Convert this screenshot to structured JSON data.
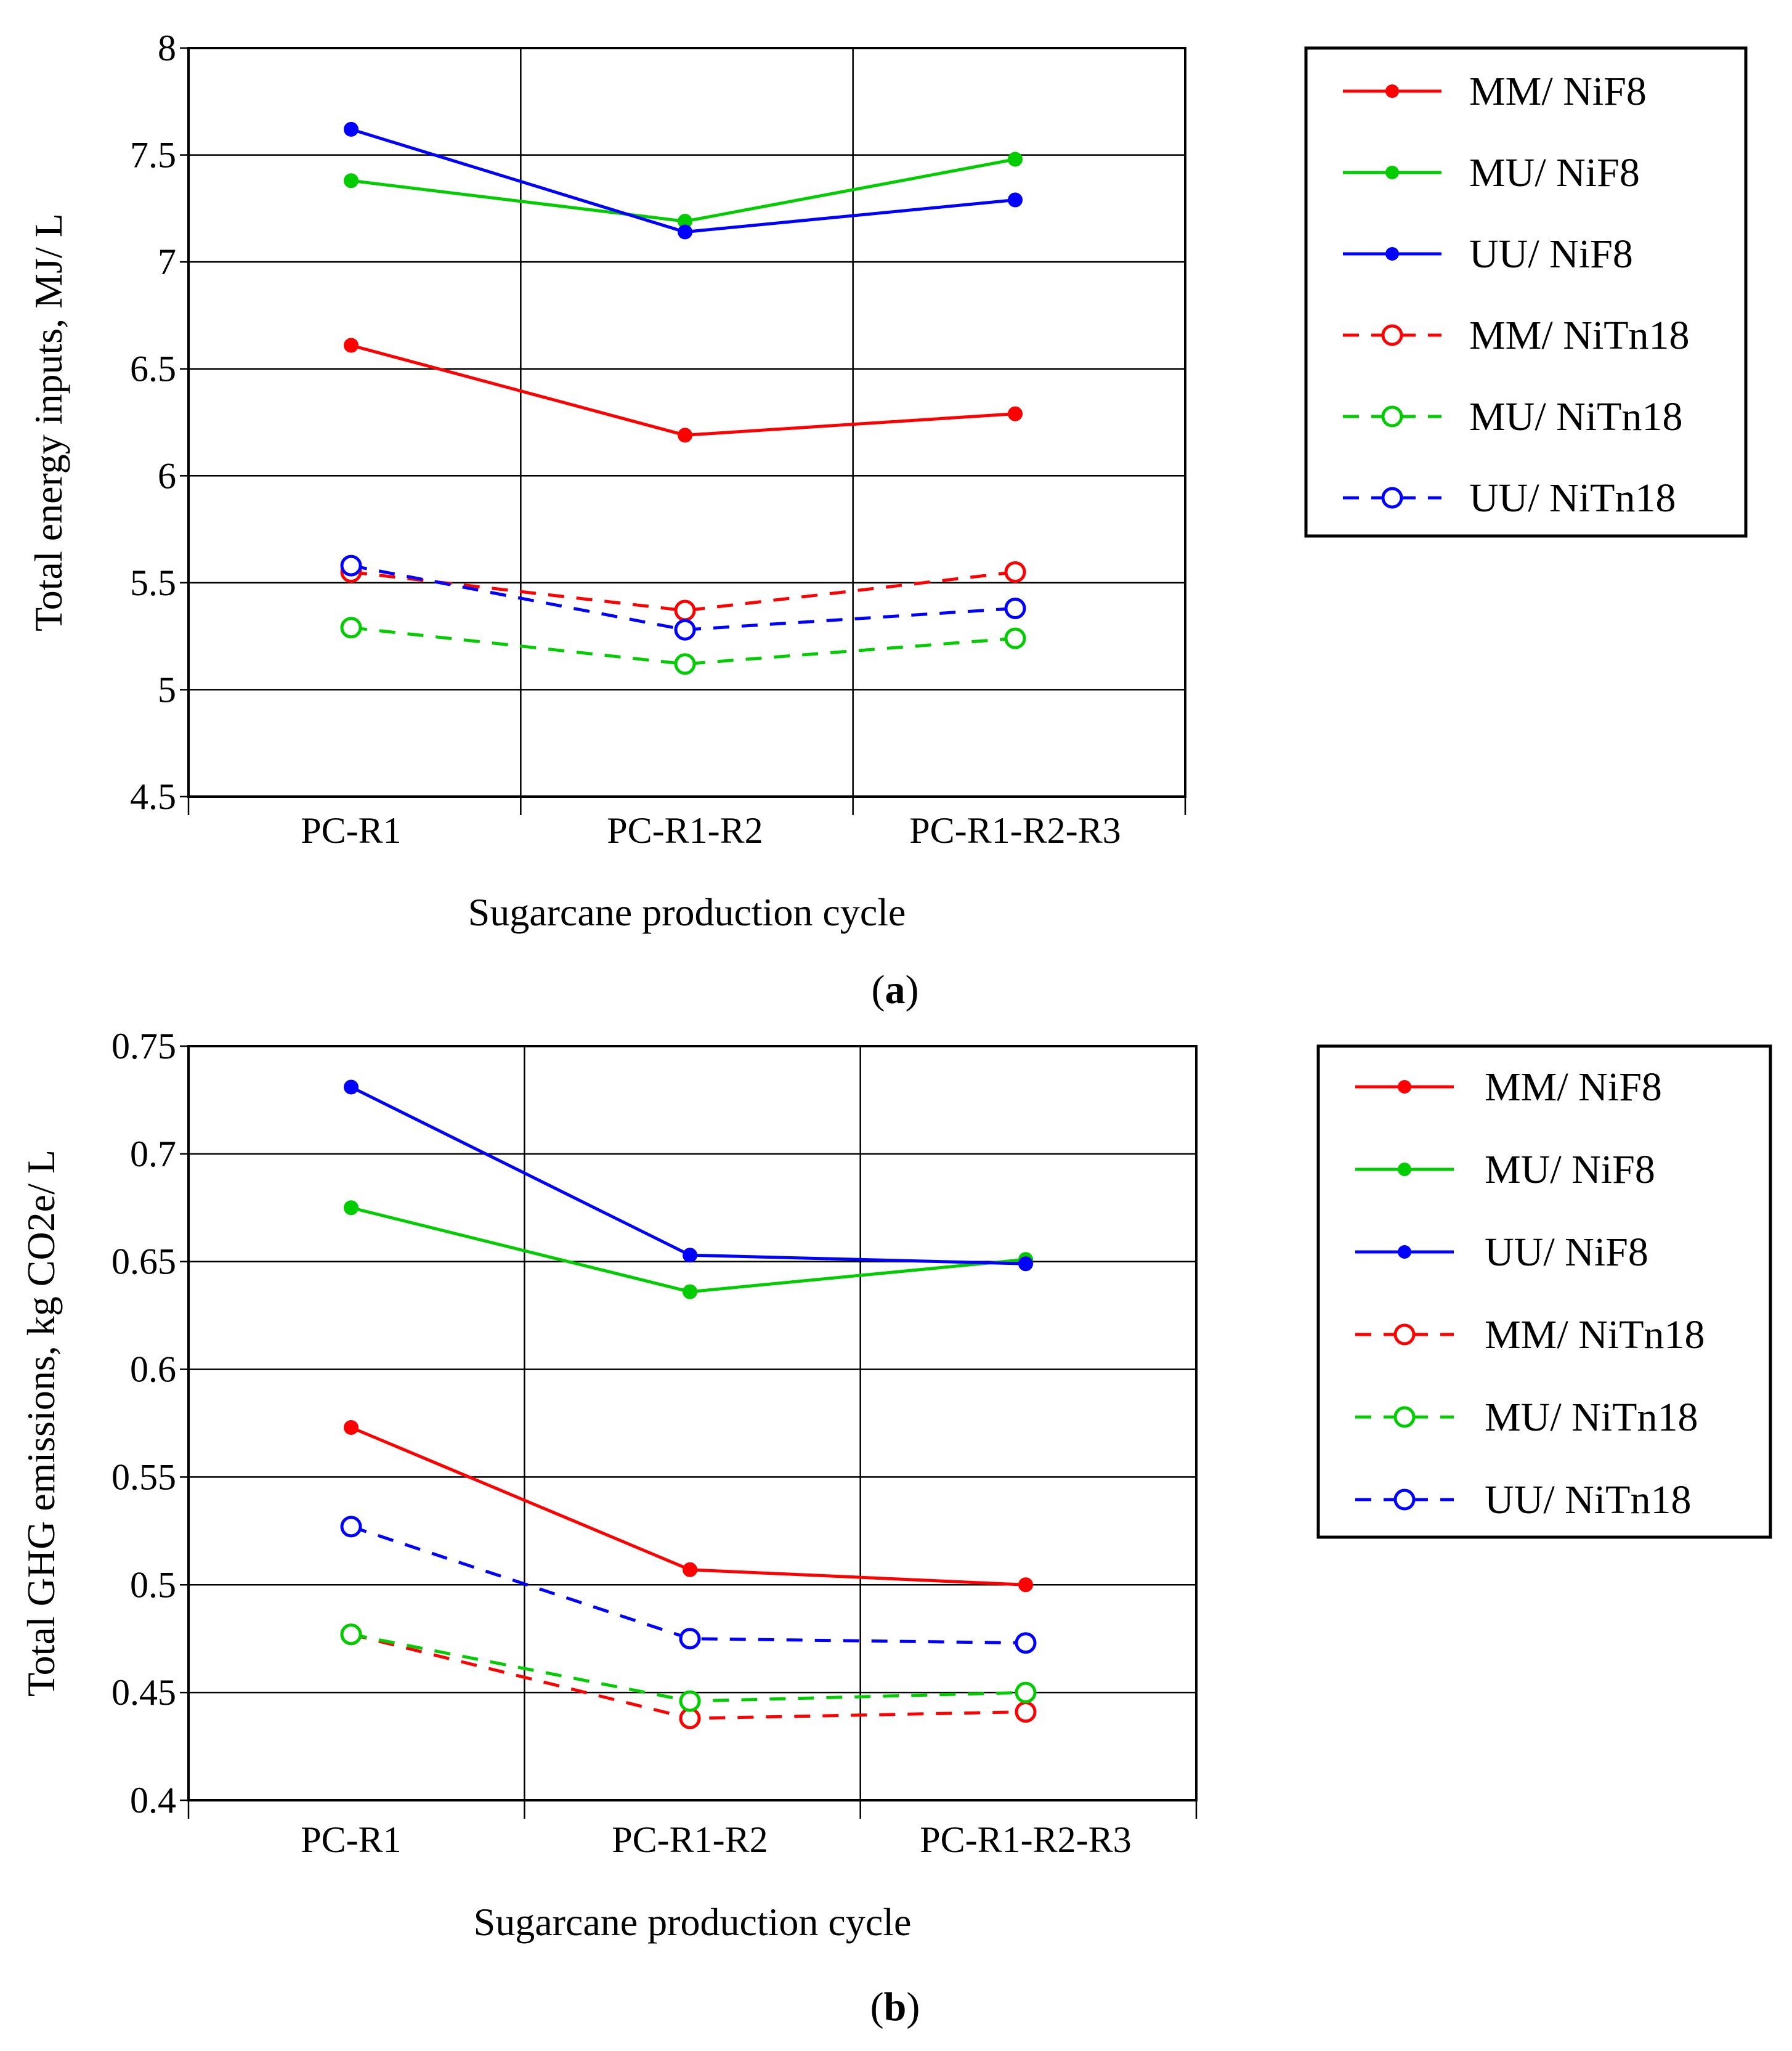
{
  "chart_data": [
    {
      "type": "line",
      "panel_label": "a",
      "xlabel": "Sugarcane production cycle",
      "ylabel": "Total energy inputs, MJ/ L",
      "categories": [
        "PC-R1",
        "PC-R1-R2",
        "PC-R1-R2-R3"
      ],
      "ylim": [
        4.5,
        8
      ],
      "yticks": [
        "4.5",
        "5",
        "5.5",
        "6",
        "6.5",
        "7",
        "7.5",
        "8"
      ],
      "grid": true,
      "legend_position": "right",
      "series": [
        {
          "name": "MM/ NiF8",
          "color": "#ff0000",
          "style": "solid",
          "marker": "filled",
          "values": [
            6.61,
            6.19,
            6.29
          ]
        },
        {
          "name": "MU/ NiF8",
          "color": "#00cc00",
          "style": "solid",
          "marker": "filled",
          "values": [
            7.38,
            7.19,
            7.48
          ]
        },
        {
          "name": "UU/ NiF8",
          "color": "#0000ff",
          "style": "solid",
          "marker": "filled",
          "values": [
            7.62,
            7.14,
            7.29
          ]
        },
        {
          "name": "MM/ NiTn18",
          "color": "#ff0000",
          "style": "dashed",
          "marker": "open",
          "values": [
            5.55,
            5.37,
            5.55
          ]
        },
        {
          "name": "MU/ NiTn18",
          "color": "#00cc00",
          "style": "dashed",
          "marker": "open",
          "values": [
            5.29,
            5.12,
            5.24
          ]
        },
        {
          "name": "UU/ NiTn18",
          "color": "#0000ff",
          "style": "dashed",
          "marker": "open",
          "values": [
            5.58,
            5.28,
            5.38
          ]
        }
      ]
    },
    {
      "type": "line",
      "panel_label": "b",
      "xlabel": "Sugarcane production cycle",
      "ylabel": "Total GHG emissions, kg CO2e/ L",
      "categories": [
        "PC-R1",
        "PC-R1-R2",
        "PC-R1-R2-R3"
      ],
      "ylim": [
        0.4,
        0.75
      ],
      "yticks": [
        "0.4",
        "0.45",
        "0.5",
        "0.55",
        "0.6",
        "0.65",
        "0.7",
        "0.75"
      ],
      "grid": true,
      "legend_position": "right",
      "series": [
        {
          "name": "MM/ NiF8",
          "color": "#ff0000",
          "style": "solid",
          "marker": "filled",
          "values": [
            0.573,
            0.507,
            0.5
          ]
        },
        {
          "name": "MU/ NiF8",
          "color": "#00cc00",
          "style": "solid",
          "marker": "filled",
          "values": [
            0.675,
            0.636,
            0.651
          ]
        },
        {
          "name": "UU/ NiF8",
          "color": "#0000ff",
          "style": "solid",
          "marker": "filled",
          "values": [
            0.731,
            0.653,
            0.649
          ]
        },
        {
          "name": "MM/ NiTn18",
          "color": "#ff0000",
          "style": "dashed",
          "marker": "open",
          "values": [
            0.477,
            0.438,
            0.441
          ]
        },
        {
          "name": "MU/ NiTn18",
          "color": "#00cc00",
          "style": "dashed",
          "marker": "open",
          "values": [
            0.477,
            0.446,
            0.45
          ]
        },
        {
          "name": "UU/ NiTn18",
          "color": "#0000ff",
          "style": "dashed",
          "marker": "open",
          "values": [
            0.527,
            0.475,
            0.473
          ]
        }
      ]
    }
  ]
}
